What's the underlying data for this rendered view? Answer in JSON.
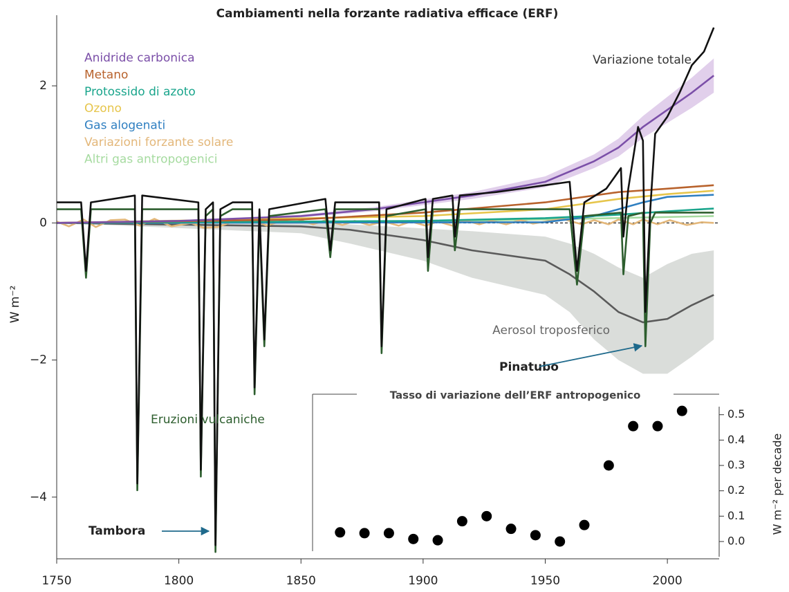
{
  "chart_data": [
    {
      "type": "line",
      "title": "Cambiamenti nella forzante radiativa efficace (ERF)",
      "y_label": "W m⁻²",
      "xlim": [
        1750,
        2021.2
      ],
      "ylim": [
        -4.9,
        3.0
      ],
      "xticks": [
        1750,
        1800,
        1850,
        1900,
        1950,
        2000
      ],
      "yticks": [
        {
          "value": -4,
          "label": "−4"
        },
        {
          "value": -2,
          "label": "−2"
        },
        0,
        2
      ],
      "annotations": [
        "Tambora",
        "Pinatubo"
      ],
      "series": [
        {
          "name": "Anidride carbonica",
          "color": "#7b4fa8",
          "band_color": "#dcc7e8",
          "x": [
            1750,
            1800,
            1850,
            1880,
            1900,
            1920,
            1950,
            1970,
            1980,
            1990,
            2000,
            2010,
            2019
          ],
          "values": [
            0,
            0.03,
            0.1,
            0.2,
            0.3,
            0.4,
            0.6,
            0.9,
            1.1,
            1.4,
            1.65,
            1.9,
            2.15
          ],
          "lower": [
            0,
            0.02,
            0.08,
            0.17,
            0.26,
            0.35,
            0.52,
            0.8,
            0.97,
            1.24,
            1.46,
            1.68,
            1.9
          ],
          "upper": [
            0,
            0.04,
            0.12,
            0.23,
            0.34,
            0.45,
            0.68,
            1.0,
            1.23,
            1.56,
            1.84,
            2.12,
            2.4
          ]
        },
        {
          "name": "Metano",
          "color": "#b8622c",
          "x": [
            1750,
            1850,
            1900,
            1950,
            1980,
            2000,
            2019
          ],
          "values": [
            0,
            0.05,
            0.15,
            0.3,
            0.45,
            0.5,
            0.55
          ]
        },
        {
          "name": "Protossido di azoto",
          "color": "#1aa58c",
          "x": [
            1750,
            1900,
            1950,
            1980,
            2000,
            2019
          ],
          "values": [
            0,
            0.03,
            0.07,
            0.12,
            0.17,
            0.21
          ]
        },
        {
          "name": "Ozono",
          "color": "#e6c54b",
          "x": [
            1750,
            1900,
            1950,
            1980,
            2000,
            2019
          ],
          "values": [
            0,
            0.1,
            0.2,
            0.35,
            0.42,
            0.47
          ]
        },
        {
          "name": "Gas alogenati",
          "color": "#2f7fc1",
          "x": [
            1750,
            1950,
            1970,
            1990,
            2000,
            2019
          ],
          "values": [
            0,
            0.01,
            0.1,
            0.3,
            0.38,
            0.41
          ]
        },
        {
          "name": "Variazioni forzante solare",
          "color": "#e3b77a",
          "x": [
            1750,
            1755,
            1761,
            1766,
            1772,
            1778,
            1784,
            1790,
            1797,
            1805,
            1810,
            1816,
            1822,
            1830,
            1836,
            1842,
            1848,
            1855,
            1860,
            1867,
            1872,
            1878,
            1884,
            1890,
            1895,
            1901,
            1906,
            1912,
            1917,
            1923,
            1928,
            1934,
            1940,
            1945,
            1957,
            1965,
            1970,
            1976,
            1980,
            1986,
            1990,
            1996,
            2001,
            2008,
            2014,
            2019
          ],
          "values": [
            0.02,
            -0.05,
            0.05,
            -0.06,
            0.04,
            0.05,
            -0.04,
            0.06,
            -0.05,
            0.0,
            -0.07,
            -0.06,
            0.02,
            0.05,
            -0.04,
            0.03,
            0.06,
            -0.02,
            0.04,
            -0.03,
            0.03,
            -0.03,
            0.02,
            -0.04,
            0.02,
            -0.04,
            0.02,
            -0.04,
            0.04,
            -0.02,
            0.03,
            -0.02,
            0.04,
            -0.01,
            0.06,
            -0.02,
            0.04,
            -0.02,
            0.05,
            -0.02,
            0.05,
            -0.02,
            0.04,
            -0.03,
            0.01,
            0.0
          ]
        },
        {
          "name": "Altri gas antropogenici",
          "color": "#a6dba0",
          "x": [
            1750,
            1900,
            1950,
            2019
          ],
          "values": [
            0,
            0.02,
            0.05,
            0.1
          ]
        },
        {
          "name": "Variazione totale",
          "color": "#111111",
          "in_legend": false,
          "x": [
            1750,
            1760,
            1762,
            1764,
            1782,
            1783,
            1785,
            1808,
            1809,
            1811,
            1814,
            1815,
            1817,
            1822,
            1830,
            1831,
            1833,
            1835,
            1837,
            1860,
            1862,
            1864,
            1882,
            1883,
            1885,
            1901,
            1902,
            1904,
            1912,
            1913,
            1915,
            1930,
            1950,
            1960,
            1963,
            1966,
            1975,
            1981,
            1982,
            1984,
            1988,
            1990,
            1991,
            1993,
            1995,
            2000,
            2005,
            2010,
            2015,
            2019
          ],
          "values": [
            0.3,
            0.3,
            -0.7,
            0.3,
            0.4,
            -3.8,
            0.4,
            0.3,
            -3.6,
            0.2,
            0.3,
            -4.7,
            0.2,
            0.3,
            0.3,
            -2.4,
            0.2,
            -1.7,
            0.2,
            0.35,
            -0.4,
            0.3,
            0.3,
            -1.8,
            0.2,
            0.35,
            -0.5,
            0.35,
            0.4,
            -0.2,
            0.4,
            0.45,
            0.55,
            0.6,
            -0.7,
            0.3,
            0.5,
            0.8,
            -0.2,
            0.5,
            1.4,
            1.2,
            -1.3,
            0.2,
            1.3,
            1.55,
            1.9,
            2.3,
            2.5,
            2.85
          ]
        },
        {
          "name": "Aerosol troposferico",
          "color": "#5a5a5a",
          "band_color": "#d4d7d4",
          "in_legend": false,
          "x": [
            1750,
            1850,
            1870,
            1900,
            1920,
            1950,
            1960,
            1970,
            1980,
            1990,
            2000,
            2010,
            2019
          ],
          "values": [
            0,
            -0.05,
            -0.1,
            -0.25,
            -0.4,
            -0.55,
            -0.75,
            -1.0,
            -1.3,
            -1.45,
            -1.4,
            -1.2,
            -1.05
          ],
          "lower": [
            0,
            -0.15,
            -0.3,
            -0.55,
            -0.8,
            -1.05,
            -1.3,
            -1.7,
            -2.0,
            -2.2,
            -2.2,
            -1.95,
            -1.7
          ],
          "upper": [
            0,
            0,
            -0.02,
            -0.08,
            -0.12,
            -0.2,
            -0.3,
            -0.45,
            -0.65,
            -0.8,
            -0.6,
            -0.45,
            -0.4
          ]
        },
        {
          "name": "Eruzioni vulcaniche",
          "color": "#2d5e2e",
          "in_legend": false,
          "x": [
            1750,
            1760,
            1762,
            1764,
            1782,
            1783,
            1785,
            1808,
            1809,
            1811,
            1814,
            1815,
            1817,
            1822,
            1830,
            1831,
            1833,
            1835,
            1837,
            1860,
            1862,
            1864,
            1882,
            1883,
            1885,
            1901,
            1902,
            1904,
            1912,
            1913,
            1915,
            1960,
            1963,
            1966,
            1981,
            1982,
            1984,
            1990,
            1991,
            1993,
            1995,
            2019
          ],
          "values": [
            0.2,
            0.2,
            -0.8,
            0.2,
            0.2,
            -3.9,
            0.2,
            0.2,
            -3.7,
            0.1,
            0.2,
            -4.8,
            0.1,
            0.2,
            0.2,
            -2.5,
            0.1,
            -1.8,
            0.1,
            0.2,
            -0.5,
            0.2,
            0.2,
            -1.9,
            0.1,
            0.2,
            -0.7,
            0.2,
            0.2,
            -0.4,
            0.2,
            0.2,
            -0.9,
            0.1,
            0.15,
            -0.75,
            0.1,
            0.15,
            -1.8,
            0.0,
            0.15,
            0.15
          ]
        }
      ]
    },
    {
      "type": "scatter",
      "title": "Tasso di variazione dell’ERF antropogenico",
      "y_label": "W m⁻² per decade",
      "xlim": [
        1750,
        2021.2
      ],
      "ylim": [
        -0.06,
        0.54
      ],
      "yticks": [
        {
          "value": 0,
          "label": "0.0"
        },
        0.1,
        0.2,
        0.3,
        0.4,
        0.5
      ],
      "color": "#000000",
      "x": [
        1866,
        1876,
        1886,
        1896,
        1906,
        1916,
        1926,
        1936,
        1946,
        1956,
        1966,
        1976,
        1986,
        1996,
        2006
      ],
      "values": [
        0.036,
        0.033,
        0.033,
        0.01,
        0.005,
        0.08,
        0.1,
        0.05,
        0.025,
        0.0,
        0.065,
        0.3,
        0.455,
        0.455,
        0.515
      ]
    }
  ]
}
